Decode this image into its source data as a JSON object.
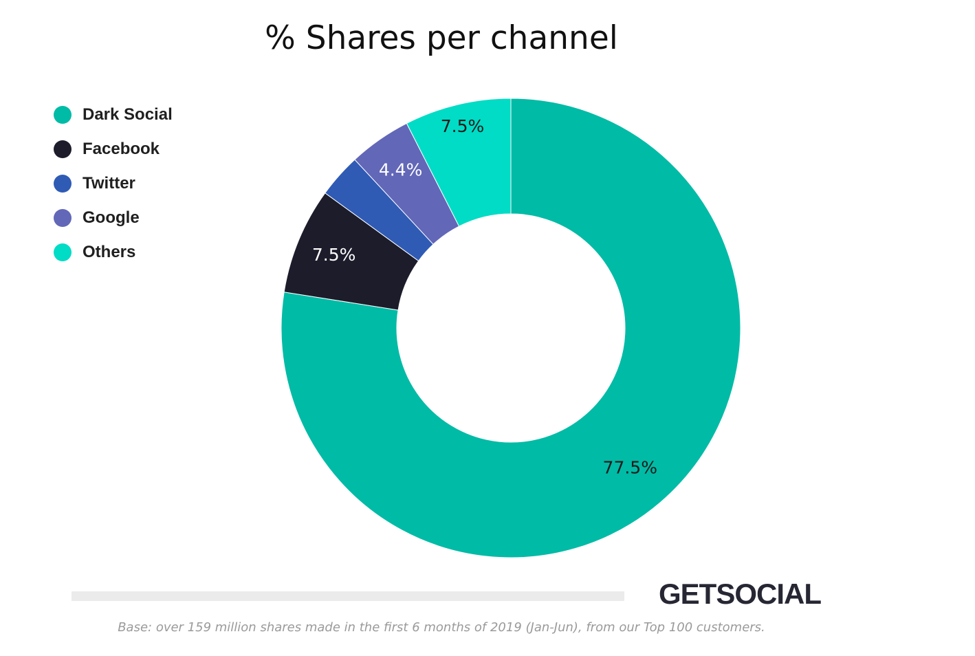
{
  "chart_data": {
    "type": "pie",
    "title": "% Shares per channel",
    "categories": [
      "Dark Social",
      "Facebook",
      "Twitter",
      "Google",
      "Others"
    ],
    "values": [
      77.5,
      7.5,
      3.1,
      4.4,
      7.5
    ],
    "data_labels": [
      "77.5%",
      "7.5%",
      "",
      "4.4%",
      "7.5%"
    ],
    "colors": [
      "#00bba6",
      "#1d1c2b",
      "#2f5bb5",
      "#6267b8",
      "#00dcc5"
    ],
    "label_colors": [
      "#1a1a1a",
      "#ffffff",
      "#ffffff",
      "#ffffff",
      "#1a1a1a"
    ],
    "legend_position": "left",
    "donut": true
  },
  "brand": "GETSOCIAL",
  "footnote": "Base: over 159 million shares made in the first 6 months of 2019 (Jan-Jun), from our Top 100 customers."
}
